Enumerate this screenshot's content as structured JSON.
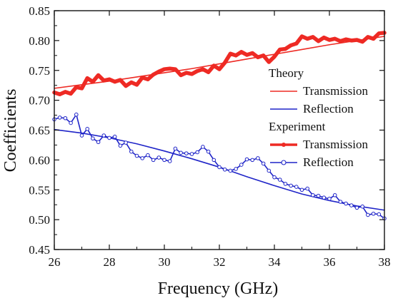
{
  "chart_data": {
    "type": "line",
    "xlabel": "Frequency (GHz)",
    "ylabel": "Coefficients",
    "xlim": [
      26,
      38
    ],
    "ylim": [
      0.45,
      0.85
    ],
    "xticks": [
      26,
      28,
      30,
      32,
      34,
      36,
      38
    ],
    "xtick_labels": [
      "26",
      "28",
      "30",
      "32",
      "34",
      "36",
      "38"
    ],
    "yticks": [
      0.45,
      0.5,
      0.55,
      0.6,
      0.65,
      0.7,
      0.75,
      0.8,
      0.85
    ],
    "ytick_labels": [
      "0.45",
      "0.50",
      "0.55",
      "0.60",
      "0.65",
      "0.70",
      "0.75",
      "0.80",
      "0.85"
    ],
    "grid": false,
    "legend": {
      "placement": "right",
      "groups": [
        {
          "title": "Theory",
          "entries": [
            {
              "series": "theory_transmission",
              "label": "Transmission"
            },
            {
              "series": "theory_reflection",
              "label": "Reflection"
            }
          ]
        },
        {
          "title": "Experiment",
          "entries": [
            {
              "series": "exp_transmission",
              "label": "Transmission"
            },
            {
              "series": "exp_reflection",
              "label": "Reflection"
            }
          ]
        }
      ]
    },
    "series": [
      {
        "id": "theory_transmission",
        "color": "#ee2a24",
        "style": "thin-line",
        "x": [
          26,
          27,
          28,
          29,
          30,
          31,
          32,
          33,
          34,
          35,
          36,
          37,
          38
        ],
        "y": [
          0.72,
          0.726,
          0.732,
          0.739,
          0.746,
          0.753,
          0.761,
          0.769,
          0.777,
          0.785,
          0.793,
          0.8,
          0.807
        ]
      },
      {
        "id": "theory_reflection",
        "color": "#1f24c8",
        "style": "thin-line",
        "x": [
          26,
          27,
          28,
          29,
          30,
          31,
          32,
          33,
          34,
          35,
          36,
          37,
          38
        ],
        "y": [
          0.651,
          0.645,
          0.637,
          0.627,
          0.615,
          0.602,
          0.588,
          0.572,
          0.557,
          0.543,
          0.532,
          0.523,
          0.516
        ]
      },
      {
        "id": "exp_transmission",
        "color": "#ee2a24",
        "style": "thick-line-dots",
        "x": [
          26.0,
          26.2,
          26.4,
          26.6,
          26.8,
          27.0,
          27.2,
          27.4,
          27.6,
          27.8,
          28.0,
          28.2,
          28.4,
          28.6,
          28.8,
          29.0,
          29.2,
          29.4,
          29.6,
          29.8,
          30.0,
          30.2,
          30.4,
          30.6,
          30.8,
          31.0,
          31.2,
          31.4,
          31.6,
          31.8,
          32.0,
          32.2,
          32.4,
          32.6,
          32.8,
          33.0,
          33.2,
          33.4,
          33.6,
          33.8,
          34.0,
          34.2,
          34.4,
          34.6,
          34.8,
          35.0,
          35.2,
          35.4,
          35.6,
          35.8,
          36.0,
          36.2,
          36.4,
          36.6,
          36.8,
          37.0,
          37.2,
          37.4,
          37.6,
          37.8,
          38.0
        ],
        "y": [
          0.713,
          0.71,
          0.714,
          0.711,
          0.722,
          0.72,
          0.737,
          0.731,
          0.742,
          0.733,
          0.735,
          0.731,
          0.734,
          0.724,
          0.73,
          0.726,
          0.738,
          0.735,
          0.743,
          0.748,
          0.752,
          0.753,
          0.752,
          0.742,
          0.746,
          0.744,
          0.749,
          0.752,
          0.747,
          0.758,
          0.752,
          0.763,
          0.778,
          0.775,
          0.781,
          0.776,
          0.779,
          0.772,
          0.775,
          0.764,
          0.773,
          0.785,
          0.786,
          0.792,
          0.795,
          0.807,
          0.803,
          0.806,
          0.799,
          0.805,
          0.801,
          0.803,
          0.799,
          0.802,
          0.8,
          0.801,
          0.798,
          0.806,
          0.803,
          0.812,
          0.813
        ]
      },
      {
        "id": "exp_reflection",
        "color": "#1f24c8",
        "marker_fill": "#ffffff",
        "style": "line-open-circles",
        "x": [
          26.0,
          26.2,
          26.4,
          26.6,
          26.8,
          27.0,
          27.2,
          27.4,
          27.6,
          27.8,
          28.0,
          28.2,
          28.4,
          28.6,
          28.8,
          29.0,
          29.2,
          29.4,
          29.6,
          29.8,
          30.0,
          30.2,
          30.4,
          30.6,
          30.8,
          31.0,
          31.2,
          31.4,
          31.6,
          31.8,
          32.0,
          32.2,
          32.4,
          32.6,
          32.8,
          33.0,
          33.2,
          33.4,
          33.6,
          33.8,
          34.0,
          34.2,
          34.4,
          34.6,
          34.8,
          35.0,
          35.2,
          35.4,
          35.6,
          35.8,
          36.0,
          36.2,
          36.4,
          36.6,
          36.8,
          37.0,
          37.2,
          37.4,
          37.6,
          37.8,
          38.0
        ],
        "y": [
          0.668,
          0.671,
          0.67,
          0.662,
          0.676,
          0.641,
          0.652,
          0.636,
          0.63,
          0.641,
          0.637,
          0.639,
          0.624,
          0.629,
          0.614,
          0.607,
          0.603,
          0.608,
          0.6,
          0.604,
          0.6,
          0.598,
          0.619,
          0.612,
          0.611,
          0.61,
          0.613,
          0.622,
          0.614,
          0.6,
          0.588,
          0.584,
          0.582,
          0.585,
          0.592,
          0.601,
          0.6,
          0.603,
          0.594,
          0.582,
          0.571,
          0.567,
          0.56,
          0.557,
          0.555,
          0.55,
          0.552,
          0.541,
          0.54,
          0.537,
          0.535,
          0.541,
          0.53,
          0.527,
          0.524,
          0.52,
          0.522,
          0.508,
          0.51,
          0.509,
          0.502
        ]
      }
    ]
  }
}
